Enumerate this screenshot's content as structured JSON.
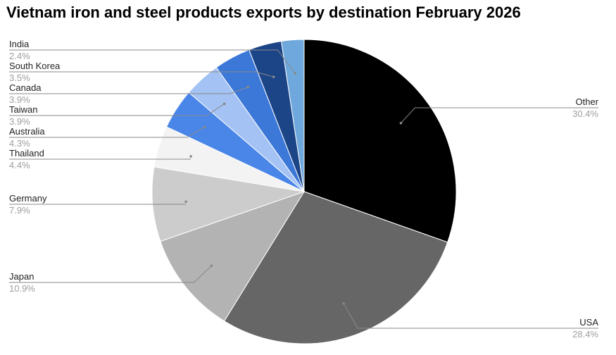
{
  "chart_data": {
    "type": "pie",
    "title": "Vietnam iron and steel products exports by destination February 2026",
    "slices": [
      {
        "label": "Other",
        "value": 30.4,
        "value_label": "30.4%",
        "color": "#000000"
      },
      {
        "label": "USA",
        "value": 28.4,
        "value_label": "28.4%",
        "color": "#666666"
      },
      {
        "label": "Japan",
        "value": 10.9,
        "value_label": "10.9%",
        "color": "#b3b3b3"
      },
      {
        "label": "Germany",
        "value": 7.9,
        "value_label": "7.9%",
        "color": "#cccccc"
      },
      {
        "label": "Thailand",
        "value": 4.4,
        "value_label": "4.4%",
        "color": "#f3f3f3"
      },
      {
        "label": "Australia",
        "value": 4.3,
        "value_label": "4.3%",
        "color": "#4a86e8"
      },
      {
        "label": "Taiwan",
        "value": 3.9,
        "value_label": "3.9%",
        "color": "#a4c2f4"
      },
      {
        "label": "Canada",
        "value": 3.9,
        "value_label": "3.9%",
        "color": "#3c78d8"
      },
      {
        "label": "South Korea",
        "value": 3.5,
        "value_label": "3.5%",
        "color": "#1c4587"
      },
      {
        "label": "India",
        "value": 2.4,
        "value_label": "2.4%",
        "color": "#6fa8dc"
      }
    ],
    "legend": "none"
  }
}
